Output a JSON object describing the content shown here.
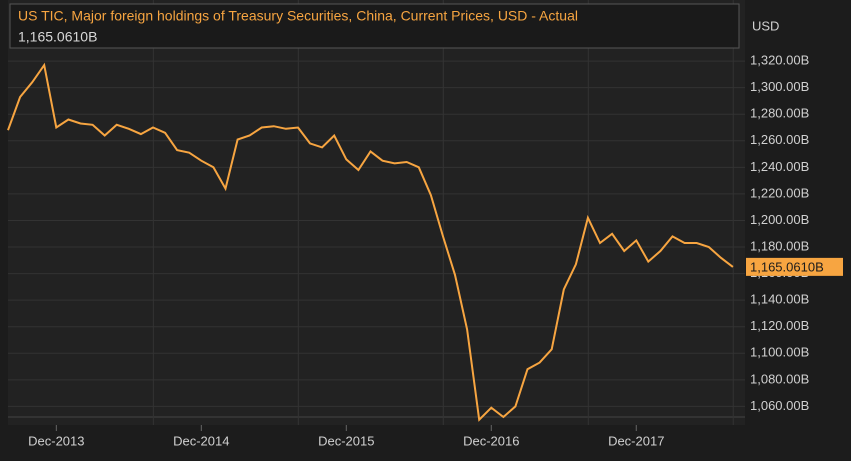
{
  "chart_data": {
    "type": "line",
    "title": "US TIC, Major foreign holdings of Treasury Securities, China, Current Prices, USD - Actual",
    "current_value": "1,165.0610B",
    "y_unit": "USD",
    "x": [
      "2013-08",
      "2013-09",
      "2013-10",
      "2013-11",
      "2013-12",
      "2014-01",
      "2014-02",
      "2014-03",
      "2014-04",
      "2014-05",
      "2014-06",
      "2014-07",
      "2014-08",
      "2014-09",
      "2014-10",
      "2014-11",
      "2014-12",
      "2015-01",
      "2015-02",
      "2015-03",
      "2015-04",
      "2015-05",
      "2015-06",
      "2015-07",
      "2015-08",
      "2015-09",
      "2015-10",
      "2015-11",
      "2015-12",
      "2016-01",
      "2016-02",
      "2016-03",
      "2016-04",
      "2016-05",
      "2016-06",
      "2016-07",
      "2016-08",
      "2016-09",
      "2016-10",
      "2016-11",
      "2016-12",
      "2017-01",
      "2017-02",
      "2017-03",
      "2017-04",
      "2017-05",
      "2017-06",
      "2017-07",
      "2017-08",
      "2017-09",
      "2017-10",
      "2017-11",
      "2017-12",
      "2018-01",
      "2018-02",
      "2018-03",
      "2018-04",
      "2018-05",
      "2018-06",
      "2018-07",
      "2018-08"
    ],
    "series": [
      {
        "name": "China",
        "color": "#f7a541",
        "values": [
          1268,
          1293,
          1304,
          1317,
          1270,
          1276,
          1273,
          1272,
          1264,
          1272,
          1269,
          1265,
          1270,
          1266,
          1253,
          1251,
          1245,
          1240,
          1224,
          1261,
          1264,
          1270,
          1271,
          1269,
          1270,
          1258,
          1255,
          1264,
          1246,
          1238,
          1252,
          1245,
          1243,
          1244,
          1240,
          1219,
          1188,
          1159,
          1118,
          1050,
          1059,
          1052,
          1060,
          1088,
          1093,
          1103,
          1148,
          1167,
          1202,
          1183,
          1190,
          1177,
          1185,
          1169,
          1177,
          1188,
          1183,
          1183,
          1180,
          1172,
          1165.061
        ]
      }
    ],
    "xlim": [
      "2013-08",
      "2018-09"
    ],
    "xticks": [
      {
        "value": "2013-12",
        "label": "Dec-2013"
      },
      {
        "value": "2014-12",
        "label": "Dec-2014"
      },
      {
        "value": "2015-12",
        "label": "Dec-2015"
      },
      {
        "value": "2016-12",
        "label": "Dec-2016"
      },
      {
        "value": "2017-12",
        "label": "Dec-2017"
      }
    ],
    "ylim": [
      1046,
      1366
    ],
    "yticks": [
      {
        "value": 1060,
        "label": "1,060.00B"
      },
      {
        "value": 1080,
        "label": "1,080.00B"
      },
      {
        "value": 1100,
        "label": "1,100.00B"
      },
      {
        "value": 1120,
        "label": "1,120.00B"
      },
      {
        "value": 1140,
        "label": "1,140.00B"
      },
      {
        "value": 1160,
        "label": "1,160.00B"
      },
      {
        "value": 1180,
        "label": "1,180.00B"
      },
      {
        "value": 1200,
        "label": "1,200.00B"
      },
      {
        "value": 1220,
        "label": "1,220.00B"
      },
      {
        "value": 1240,
        "label": "1,240.00B"
      },
      {
        "value": 1260,
        "label": "1,260.00B"
      },
      {
        "value": 1280,
        "label": "1,280.00B"
      },
      {
        "value": 1300,
        "label": "1,300.00B"
      },
      {
        "value": 1320,
        "label": "1,320.00B"
      }
    ],
    "grid": true
  }
}
